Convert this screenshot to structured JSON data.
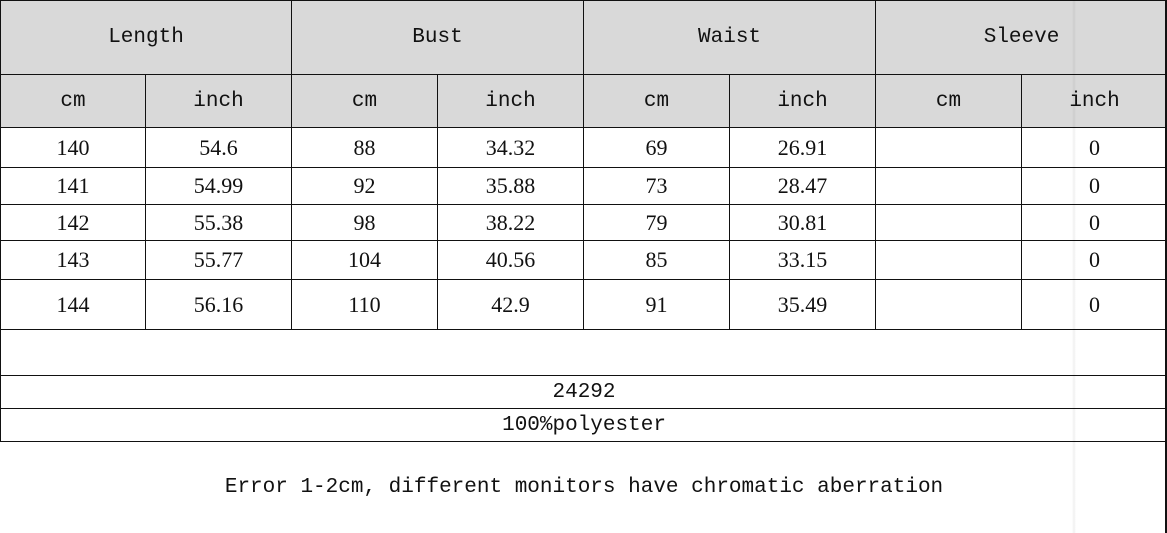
{
  "headers": [
    "Length",
    "Bust",
    "Waist",
    "Sleeve"
  ],
  "subheaders": [
    "cm",
    "inch",
    "cm",
    "inch",
    "cm",
    "inch",
    "cm",
    "inch"
  ],
  "rows": [
    [
      "140",
      "54.6",
      "88",
      "34.32",
      "69",
      "26.91",
      "",
      "0"
    ],
    [
      "141",
      "54.99",
      "92",
      "35.88",
      "73",
      "28.47",
      "",
      "0"
    ],
    [
      "142",
      "55.38",
      "98",
      "38.22",
      "79",
      "30.81",
      "",
      "0"
    ],
    [
      "143",
      "55.77",
      "104",
      "40.56",
      "85",
      "33.15",
      "",
      "0"
    ],
    [
      "144",
      "56.16",
      "110",
      "42.9",
      "91",
      "35.49",
      "",
      "0"
    ]
  ],
  "item_code": "24292",
  "material": "100%polyester",
  "note": "Error 1-2cm, different monitors have chromatic aberration",
  "colors": {
    "header_bg": "#d9d9d9",
    "border": "#111111"
  }
}
